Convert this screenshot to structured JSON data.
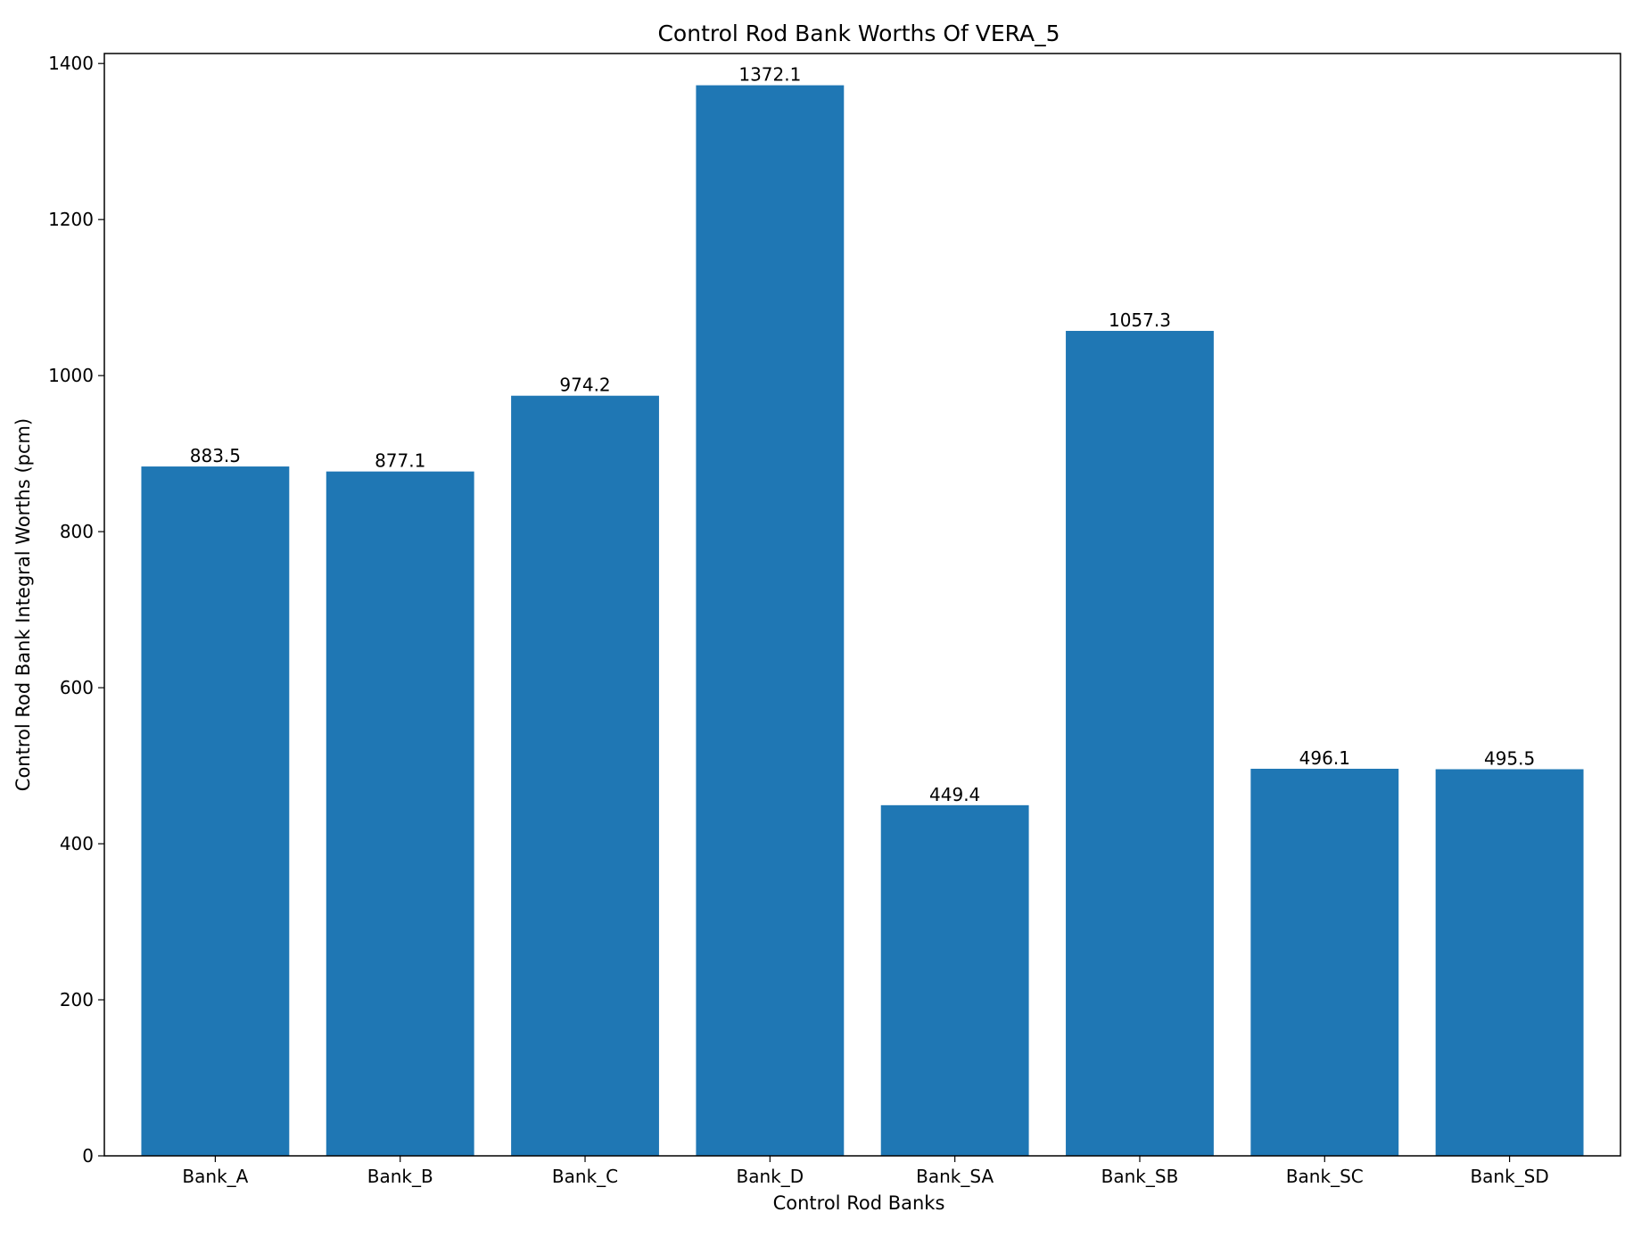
{
  "chart_data": {
    "type": "bar",
    "title": "Control Rod Bank Worths Of VERA_5",
    "xlabel": "Control Rod Banks",
    "ylabel": "Control Rod Bank Integral Worths (pcm)",
    "categories": [
      "Bank_A",
      "Bank_B",
      "Bank_C",
      "Bank_D",
      "Bank_SA",
      "Bank_SB",
      "Bank_SC",
      "Bank_SD"
    ],
    "values": [
      883.5,
      877.1,
      974.2,
      1372.1,
      449.4,
      1057.3,
      496.1,
      495.5
    ],
    "value_labels": [
      "883.5",
      "877.1",
      "974.2",
      "1372.1",
      "449.4",
      "1057.3",
      "496.1",
      "495.5"
    ],
    "ylim": [
      0,
      1412.8
    ],
    "yticks": [
      0,
      200,
      400,
      600,
      800,
      1000,
      1200,
      1400
    ],
    "ytick_labels": [
      "0",
      "200",
      "400",
      "600",
      "800",
      "1000",
      "1200",
      "1400"
    ],
    "grid": false,
    "bar_color": "#1f77b4"
  }
}
